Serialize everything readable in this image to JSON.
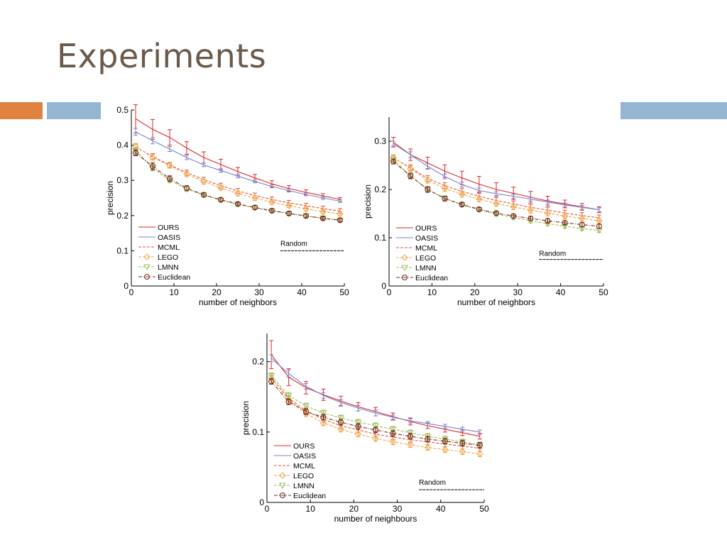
{
  "slide": {
    "title": "Experiments"
  },
  "colors": {
    "ours": "#e0262b",
    "oasis": "#7b83c9",
    "mcml": "#e2533a",
    "lego": "#f2a74a",
    "lmnn": "#9fc05a",
    "euclidean": "#7a2a1f",
    "random": "#000000",
    "accent_orange": "#e0823f",
    "accent_blue": "#94b6d2"
  },
  "chart_data": [
    {
      "type": "line",
      "xlabel": "number of neighbors",
      "ylabel": "precision",
      "xlim": [
        0,
        50
      ],
      "ylim": [
        0,
        0.5
      ],
      "xticks": [
        0,
        10,
        20,
        30,
        40,
        50
      ],
      "yticks": [
        0,
        0.1,
        0.2,
        0.3,
        0.4,
        0.5
      ],
      "ytick_labels": [
        "0",
        "0.1",
        "0.2",
        "0.3",
        "0.4",
        "0.5"
      ],
      "x": [
        1,
        5,
        9,
        13,
        17,
        21,
        25,
        29,
        33,
        37,
        41,
        45,
        49
      ],
      "series": [
        {
          "name": "OURS",
          "color": "#e0262b",
          "marker": "none",
          "dash": "solid",
          "values": [
            0.475,
            0.445,
            0.422,
            0.392,
            0.365,
            0.345,
            0.325,
            0.307,
            0.29,
            0.277,
            0.266,
            0.256,
            0.246
          ],
          "errors": [
            0.04,
            0.028,
            0.022,
            0.018,
            0.016,
            0.015,
            0.012,
            0.01,
            0.009,
            0.008,
            0.007,
            0.006,
            0.005
          ]
        },
        {
          "name": "OASIS",
          "color": "#7b83c9",
          "marker": "none",
          "dash": "solid",
          "values": [
            0.438,
            0.413,
            0.389,
            0.365,
            0.344,
            0.328,
            0.312,
            0.297,
            0.283,
            0.271,
            0.26,
            0.25,
            0.241
          ],
          "errors": [
            0.01,
            0.009,
            0.007,
            0.006,
            0.005,
            0.005,
            0.005,
            0.004,
            0.004,
            0.004,
            0.004,
            0.004,
            0.004
          ]
        },
        {
          "name": "MCML",
          "color": "#e2533a",
          "marker": "none",
          "dash": "dashed",
          "values": [
            0.395,
            0.368,
            0.344,
            0.322,
            0.302,
            0.285,
            0.27,
            0.257,
            0.246,
            0.236,
            0.228,
            0.22,
            0.213
          ],
          "errors": [
            0.008,
            0.008,
            0.007,
            0.007,
            0.007,
            0.007,
            0.007,
            0.007,
            0.007,
            0.007,
            0.007,
            0.007,
            0.007
          ]
        },
        {
          "name": "LEGO",
          "color": "#f2a74a",
          "marker": "diamond",
          "dash": "dashed",
          "values": [
            0.397,
            0.365,
            0.342,
            0.318,
            0.296,
            0.279,
            0.263,
            0.25,
            0.238,
            0.228,
            0.219,
            0.211,
            0.205
          ],
          "errors": [
            0.008,
            0.008,
            0.007,
            0.007,
            0.007,
            0.007,
            0.007,
            0.007,
            0.006,
            0.006,
            0.006,
            0.006,
            0.006
          ]
        },
        {
          "name": "LMNN",
          "color": "#9fc05a",
          "marker": "triangle",
          "dash": "dashed",
          "values": [
            0.385,
            0.335,
            0.3,
            0.275,
            0.258,
            0.244,
            0.232,
            0.222,
            0.213,
            0.206,
            0.199,
            0.193,
            0.187
          ],
          "errors": [
            0.008,
            0.007,
            0.006,
            0.006,
            0.005,
            0.005,
            0.005,
            0.005,
            0.005,
            0.005,
            0.005,
            0.005,
            0.005
          ]
        },
        {
          "name": "Euclidean",
          "color": "#7a2a1f",
          "marker": "circle",
          "dash": "dashdot",
          "values": [
            0.378,
            0.34,
            0.305,
            0.278,
            0.259,
            0.245,
            0.233,
            0.223,
            0.214,
            0.206,
            0.199,
            0.192,
            0.187
          ],
          "errors": [
            0.008,
            0.01,
            0.008,
            0.007,
            0.006,
            0.005,
            0.005,
            0.005,
            0.005,
            0.005,
            0.005,
            0.004,
            0.004
          ]
        }
      ],
      "random": {
        "label": "Random",
        "x": [
          35,
          50
        ],
        "y": 0.1
      },
      "legend": "bottom-left"
    },
    {
      "type": "line",
      "xlabel": "number of neighbors",
      "ylabel": "precision",
      "xlim": [
        0,
        50
      ],
      "ylim": [
        0,
        0.35
      ],
      "xticks": [
        0,
        10,
        20,
        30,
        40,
        50
      ],
      "yticks": [
        0,
        0.1,
        0.2,
        0.3
      ],
      "ytick_labels": [
        "0",
        "0.1",
        "0.2",
        "0.3"
      ],
      "x": [
        1,
        5,
        9,
        13,
        17,
        21,
        25,
        29,
        33,
        37,
        41,
        45,
        49
      ],
      "series": [
        {
          "name": "OURS",
          "color": "#e0262b",
          "marker": "none",
          "dash": "solid",
          "values": [
            0.298,
            0.272,
            0.255,
            0.238,
            0.224,
            0.211,
            0.2,
            0.192,
            0.184,
            0.176,
            0.17,
            0.164,
            0.158
          ],
          "errors": [
            0.01,
            0.012,
            0.012,
            0.013,
            0.014,
            0.016,
            0.014,
            0.013,
            0.012,
            0.01,
            0.008,
            0.007,
            0.006
          ]
        },
        {
          "name": "OASIS",
          "color": "#7b83c9",
          "marker": "none",
          "dash": "solid",
          "values": [
            0.295,
            0.272,
            0.248,
            0.227,
            0.21,
            0.198,
            0.191,
            0.186,
            0.18,
            0.174,
            0.168,
            0.163,
            0.158
          ],
          "errors": [
            0.005,
            0.006,
            0.006,
            0.005,
            0.005,
            0.005,
            0.004,
            0.004,
            0.004,
            0.004,
            0.004,
            0.004,
            0.004
          ]
        },
        {
          "name": "MCML",
          "color": "#e2533a",
          "marker": "none",
          "dash": "dashed",
          "values": [
            0.265,
            0.245,
            0.223,
            0.208,
            0.196,
            0.186,
            0.177,
            0.17,
            0.163,
            0.157,
            0.151,
            0.146,
            0.141
          ],
          "errors": [
            0.006,
            0.006,
            0.006,
            0.006,
            0.006,
            0.006,
            0.006,
            0.006,
            0.006,
            0.006,
            0.006,
            0.006,
            0.006
          ]
        },
        {
          "name": "LEGO",
          "color": "#f2a74a",
          "marker": "diamond",
          "dash": "dashed",
          "values": [
            0.266,
            0.243,
            0.219,
            0.202,
            0.19,
            0.18,
            0.171,
            0.164,
            0.157,
            0.151,
            0.145,
            0.14,
            0.135
          ],
          "errors": [
            0.006,
            0.006,
            0.006,
            0.006,
            0.006,
            0.006,
            0.006,
            0.006,
            0.006,
            0.006,
            0.006,
            0.006,
            0.006
          ]
        },
        {
          "name": "LMNN",
          "color": "#9fc05a",
          "marker": "triangle",
          "dash": "dashed",
          "values": [
            0.262,
            0.228,
            0.2,
            0.182,
            0.168,
            0.158,
            0.149,
            0.142,
            0.135,
            0.129,
            0.124,
            0.119,
            0.115
          ],
          "errors": [
            0.005,
            0.005,
            0.005,
            0.005,
            0.004,
            0.004,
            0.004,
            0.004,
            0.004,
            0.004,
            0.004,
            0.004,
            0.004
          ]
        },
        {
          "name": "Euclidean",
          "color": "#7a2a1f",
          "marker": "circle",
          "dash": "dashdot",
          "values": [
            0.258,
            0.228,
            0.2,
            0.181,
            0.169,
            0.159,
            0.151,
            0.145,
            0.14,
            0.135,
            0.131,
            0.127,
            0.124
          ],
          "errors": [
            0.005,
            0.006,
            0.006,
            0.005,
            0.004,
            0.004,
            0.004,
            0.004,
            0.004,
            0.004,
            0.004,
            0.004,
            0.004
          ]
        }
      ],
      "random": {
        "label": "Random",
        "x": [
          35,
          50
        ],
        "y": 0.055
      },
      "legend": "bottom-left"
    },
    {
      "type": "line",
      "xlabel": "number of neighbours",
      "ylabel": "precision",
      "xlim": [
        0,
        50
      ],
      "ylim": [
        0,
        0.24
      ],
      "xticks": [
        0,
        10,
        20,
        30,
        40,
        50
      ],
      "yticks": [
        0,
        0.1,
        0.2
      ],
      "ytick_labels": [
        "0",
        "0.1",
        "0.2"
      ],
      "x": [
        1,
        5,
        9,
        13,
        17,
        21,
        25,
        29,
        33,
        37,
        41,
        45,
        49
      ],
      "series": [
        {
          "name": "OURS",
          "color": "#e0262b",
          "marker": "none",
          "dash": "solid",
          "values": [
            0.21,
            0.178,
            0.163,
            0.153,
            0.144,
            0.136,
            0.129,
            0.122,
            0.115,
            0.109,
            0.104,
            0.099,
            0.094
          ],
          "errors": [
            0.02,
            0.012,
            0.009,
            0.008,
            0.007,
            0.006,
            0.006,
            0.005,
            0.005,
            0.004,
            0.004,
            0.004,
            0.004
          ]
        },
        {
          "name": "OASIS",
          "color": "#7b83c9",
          "marker": "none",
          "dash": "solid",
          "values": [
            0.205,
            0.183,
            0.165,
            0.152,
            0.142,
            0.134,
            0.127,
            0.121,
            0.116,
            0.112,
            0.108,
            0.104,
            0.1
          ],
          "errors": [
            0.005,
            0.005,
            0.004,
            0.004,
            0.004,
            0.004,
            0.004,
            0.003,
            0.003,
            0.003,
            0.003,
            0.003,
            0.003
          ]
        },
        {
          "name": "MCML",
          "color": "#e2533a",
          "marker": "none",
          "dash": "dashed",
          "values": [
            0.177,
            0.148,
            0.13,
            0.118,
            0.109,
            0.103,
            0.097,
            0.093,
            0.089,
            0.086,
            0.083,
            0.08,
            0.077
          ],
          "errors": [
            0.004,
            0.004,
            0.004,
            0.004,
            0.004,
            0.004,
            0.004,
            0.004,
            0.004,
            0.004,
            0.004,
            0.004,
            0.004
          ]
        },
        {
          "name": "LEGO",
          "color": "#f2a74a",
          "marker": "diamond",
          "dash": "dashed",
          "values": [
            0.177,
            0.146,
            0.126,
            0.113,
            0.104,
            0.097,
            0.091,
            0.086,
            0.082,
            0.078,
            0.075,
            0.072,
            0.069
          ],
          "errors": [
            0.004,
            0.004,
            0.004,
            0.004,
            0.004,
            0.004,
            0.004,
            0.004,
            0.004,
            0.004,
            0.004,
            0.004,
            0.004
          ]
        },
        {
          "name": "LMNN",
          "color": "#9fc05a",
          "marker": "triangle",
          "dash": "dashed",
          "values": [
            0.18,
            0.152,
            0.137,
            0.127,
            0.12,
            0.114,
            0.109,
            0.104,
            0.099,
            0.094,
            0.09,
            0.086,
            0.082
          ],
          "errors": [
            0.004,
            0.004,
            0.004,
            0.004,
            0.004,
            0.004,
            0.004,
            0.004,
            0.004,
            0.004,
            0.004,
            0.004,
            0.004
          ]
        },
        {
          "name": "Euclidean",
          "color": "#7a2a1f",
          "marker": "circle",
          "dash": "dashdot",
          "values": [
            0.172,
            0.143,
            0.129,
            0.121,
            0.114,
            0.108,
            0.103,
            0.098,
            0.094,
            0.09,
            0.087,
            0.084,
            0.081
          ],
          "errors": [
            0.004,
            0.004,
            0.004,
            0.004,
            0.004,
            0.004,
            0.004,
            0.004,
            0.004,
            0.004,
            0.004,
            0.004,
            0.004
          ]
        }
      ],
      "random": {
        "label": "Random",
        "x": [
          35,
          50
        ],
        "y": 0.018
      },
      "legend": "bottom-left"
    }
  ]
}
